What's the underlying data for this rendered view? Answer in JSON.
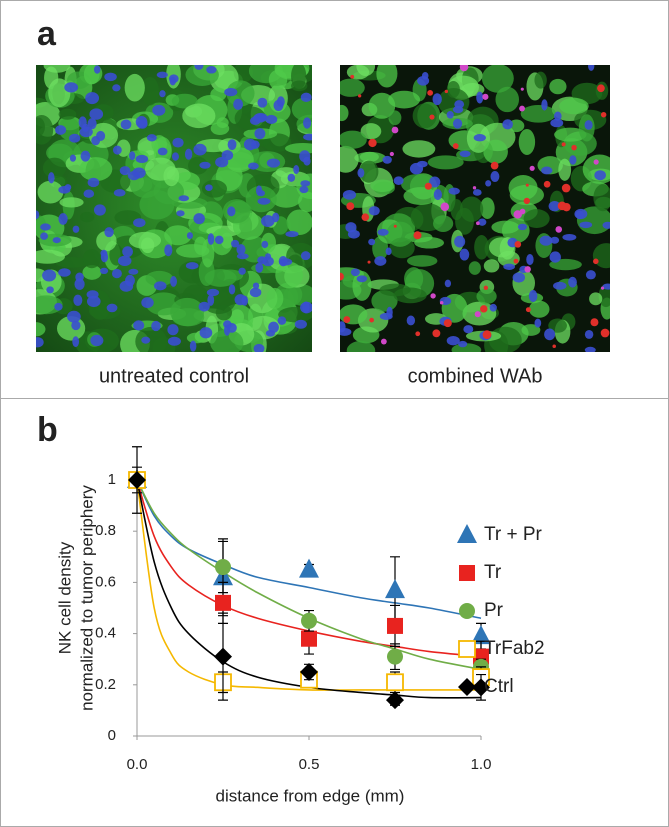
{
  "panels": {
    "a_label": "a",
    "b_label": "b",
    "left_caption": "untreated control",
    "right_caption": "combined WAb"
  },
  "chart_data": {
    "type": "scatter",
    "x_label": "distance from edge (mm)",
    "y_label": [
      "NK cell density",
      "normalized to tumor periphery"
    ],
    "x": [
      0,
      0.25,
      0.5,
      0.75,
      1.0
    ],
    "fit_x": [
      0,
      0.05,
      0.1,
      0.15,
      0.25,
      0.35,
      0.5,
      0.65,
      0.75,
      0.85,
      1.0
    ],
    "series": [
      {
        "name": "Tr + Pr",
        "color": "#2e75b6",
        "marker": "triangle",
        "values": [
          1.0,
          0.62,
          0.65,
          0.57,
          0.39
        ],
        "errors": [
          0,
          0.15,
          0.02,
          0.13,
          0.05
        ],
        "fit": [
          1.0,
          0.86,
          0.78,
          0.73,
          0.67,
          0.62,
          0.58,
          0.54,
          0.52,
          0.5,
          0.46
        ]
      },
      {
        "name": "Tr",
        "color": "#e8231f",
        "marker": "square",
        "values": [
          1.0,
          0.52,
          0.38,
          0.43,
          0.31
        ],
        "errors": [
          0,
          0.08,
          0.06,
          0.08,
          0.06
        ],
        "fit": [
          1.0,
          0.78,
          0.66,
          0.59,
          0.51,
          0.46,
          0.41,
          0.37,
          0.35,
          0.33,
          0.31
        ]
      },
      {
        "name": "Pr",
        "color": "#70ad47",
        "marker": "circle",
        "values": [
          1.0,
          0.66,
          0.45,
          0.31,
          0.27
        ],
        "errors": [
          0,
          0.1,
          0.04,
          0.05,
          0.03
        ],
        "fit": [
          1.0,
          0.87,
          0.79,
          0.73,
          0.64,
          0.56,
          0.46,
          0.38,
          0.34,
          0.3,
          0.26
        ]
      },
      {
        "name": "TrFab2",
        "color": "#f5b800",
        "marker": "open-square",
        "values": [
          1.0,
          0.21,
          0.22,
          0.21,
          0.23
        ],
        "errors": [
          0.05,
          0.04,
          0.03,
          0.04,
          0.04
        ],
        "fit": [
          1.0,
          0.5,
          0.32,
          0.25,
          0.2,
          0.19,
          0.18,
          0.18,
          0.18,
          0.18,
          0.18
        ]
      },
      {
        "name": "Ctrl",
        "color": "#000000",
        "marker": "diamond",
        "values": [
          1.0,
          0.31,
          0.25,
          0.14,
          0.19
        ],
        "errors": [
          0.13,
          0.17,
          0.03,
          0.02,
          0.05
        ],
        "fit": [
          1.0,
          0.68,
          0.5,
          0.4,
          0.29,
          0.23,
          0.19,
          0.17,
          0.16,
          0.15,
          0.15
        ]
      }
    ],
    "xlim": [
      0,
      1
    ],
    "ylim": [
      0,
      1
    ],
    "xticks": [
      {
        "value": 0,
        "label": "0.0"
      },
      {
        "value": 0.5,
        "label": "0.5"
      },
      {
        "value": 1,
        "label": "1.0"
      }
    ],
    "yticks": [
      0,
      0.2,
      0.4,
      0.6,
      0.8,
      1
    ],
    "legend": "right",
    "grid": false
  }
}
